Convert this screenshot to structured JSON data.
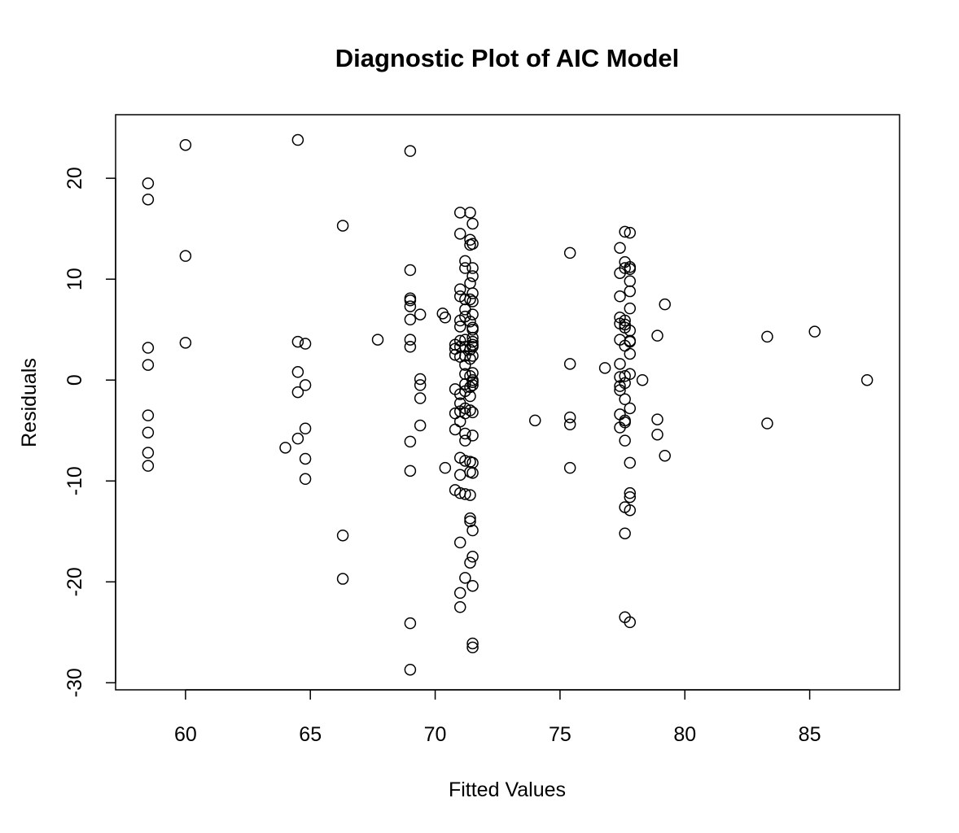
{
  "chart_data": {
    "type": "scatter",
    "title": "Diagnostic Plot of AIC Model",
    "xlabel": "Fitted Values",
    "ylabel": "Residuals",
    "xlim": [
      57.2,
      88.6
    ],
    "ylim": [
      -30.7,
      26.3
    ],
    "xticks": [
      60,
      65,
      70,
      75,
      80,
      85
    ],
    "yticks": [
      -30,
      -20,
      -10,
      0,
      10,
      20
    ],
    "xtick_labels": [
      "60",
      "65",
      "70",
      "75",
      "80",
      "85"
    ],
    "ytick_labels": [
      "-30",
      "-20",
      "-10",
      "0",
      "10",
      "20"
    ],
    "grid": false,
    "legend": "none",
    "marker": "open-circle",
    "points": [
      [
        58.5,
        19.5
      ],
      [
        58.5,
        17.9
      ],
      [
        58.5,
        3.2
      ],
      [
        58.5,
        1.5
      ],
      [
        58.5,
        -3.5
      ],
      [
        58.5,
        -5.2
      ],
      [
        58.5,
        -7.2
      ],
      [
        58.5,
        -8.5
      ],
      [
        60.0,
        23.3
      ],
      [
        60.0,
        12.3
      ],
      [
        60.0,
        3.7
      ],
      [
        64.0,
        -6.7
      ],
      [
        64.5,
        23.8
      ],
      [
        64.5,
        3.8
      ],
      [
        64.5,
        0.8
      ],
      [
        64.5,
        -1.2
      ],
      [
        64.5,
        -5.8
      ],
      [
        64.8,
        3.6
      ],
      [
        64.8,
        -0.5
      ],
      [
        64.8,
        -4.8
      ],
      [
        64.8,
        -7.8
      ],
      [
        64.8,
        -9.8
      ],
      [
        66.3,
        15.3
      ],
      [
        66.3,
        -15.4
      ],
      [
        66.3,
        -19.7
      ],
      [
        67.7,
        4.0
      ],
      [
        69.0,
        22.7
      ],
      [
        69.0,
        10.9
      ],
      [
        69.0,
        8.1
      ],
      [
        69.0,
        7.9
      ],
      [
        69.0,
        7.3
      ],
      [
        69.0,
        6.0
      ],
      [
        69.0,
        4.0
      ],
      [
        69.0,
        3.3
      ],
      [
        69.0,
        -6.1
      ],
      [
        69.0,
        -9.0
      ],
      [
        69.0,
        -24.1
      ],
      [
        69.0,
        -28.7
      ],
      [
        69.4,
        6.5
      ],
      [
        69.4,
        0.1
      ],
      [
        69.4,
        -0.5
      ],
      [
        69.4,
        -1.8
      ],
      [
        69.4,
        -4.5
      ],
      [
        70.3,
        6.6
      ],
      [
        70.4,
        6.2
      ],
      [
        70.4,
        -8.7
      ],
      [
        70.8,
        3.5
      ],
      [
        70.8,
        3.1
      ],
      [
        70.8,
        2.5
      ],
      [
        70.8,
        -0.9
      ],
      [
        70.8,
        -3.3
      ],
      [
        70.8,
        -4.9
      ],
      [
        70.8,
        -10.9
      ],
      [
        71.0,
        16.6
      ],
      [
        71.0,
        14.5
      ],
      [
        71.0,
        9.0
      ],
      [
        71.0,
        8.3
      ],
      [
        71.0,
        5.9
      ],
      [
        71.0,
        5.3
      ],
      [
        71.0,
        3.9
      ],
      [
        71.0,
        3.3
      ],
      [
        71.0,
        2.3
      ],
      [
        71.0,
        -1.4
      ],
      [
        71.0,
        -2.3
      ],
      [
        71.0,
        -3.1
      ],
      [
        71.0,
        -4.1
      ],
      [
        71.0,
        -7.7
      ],
      [
        71.0,
        -9.4
      ],
      [
        71.0,
        -11.2
      ],
      [
        71.0,
        -16.1
      ],
      [
        71.0,
        -21.1
      ],
      [
        71.0,
        -22.5
      ],
      [
        71.2,
        11.8
      ],
      [
        71.2,
        11.1
      ],
      [
        71.2,
        8.0
      ],
      [
        71.2,
        7.0
      ],
      [
        71.2,
        6.3
      ],
      [
        71.2,
        4.0
      ],
      [
        71.2,
        3.3
      ],
      [
        71.2,
        2.4
      ],
      [
        71.2,
        1.5
      ],
      [
        71.2,
        0.6
      ],
      [
        71.2,
        -0.4
      ],
      [
        71.2,
        -1.1
      ],
      [
        71.2,
        -2.8
      ],
      [
        71.2,
        -3.3
      ],
      [
        71.2,
        -5.3
      ],
      [
        71.2,
        -6.0
      ],
      [
        71.2,
        -8.0
      ],
      [
        71.2,
        -11.3
      ],
      [
        71.2,
        -19.6
      ],
      [
        71.4,
        16.6
      ],
      [
        71.4,
        13.9
      ],
      [
        71.4,
        13.4
      ],
      [
        71.4,
        9.6
      ],
      [
        71.4,
        8.0
      ],
      [
        71.4,
        5.8
      ],
      [
        71.4,
        3.0
      ],
      [
        71.4,
        2.1
      ],
      [
        71.4,
        0.4
      ],
      [
        71.4,
        -0.7
      ],
      [
        71.4,
        -1.6
      ],
      [
        71.4,
        -3.0
      ],
      [
        71.4,
        -8.1
      ],
      [
        71.4,
        -9.1
      ],
      [
        71.4,
        -11.4
      ],
      [
        71.4,
        -13.7
      ],
      [
        71.4,
        -14.0
      ],
      [
        71.4,
        -18.1
      ],
      [
        71.5,
        15.5
      ],
      [
        71.5,
        13.5
      ],
      [
        71.5,
        11.1
      ],
      [
        71.5,
        10.3
      ],
      [
        71.5,
        8.6
      ],
      [
        71.5,
        7.8
      ],
      [
        71.5,
        6.5
      ],
      [
        71.5,
        5.2
      ],
      [
        71.5,
        5.0
      ],
      [
        71.5,
        4.2
      ],
      [
        71.5,
        3.8
      ],
      [
        71.5,
        3.5
      ],
      [
        71.5,
        3.3
      ],
      [
        71.5,
        2.4
      ],
      [
        71.5,
        0.7
      ],
      [
        71.5,
        0.0
      ],
      [
        71.5,
        -0.2
      ],
      [
        71.5,
        -0.5
      ],
      [
        71.5,
        -3.2
      ],
      [
        71.5,
        -5.5
      ],
      [
        71.5,
        -8.2
      ],
      [
        71.5,
        -9.2
      ],
      [
        71.5,
        -14.9
      ],
      [
        71.5,
        -17.5
      ],
      [
        71.5,
        -20.4
      ],
      [
        71.5,
        -26.1
      ],
      [
        71.5,
        -26.5
      ],
      [
        74.0,
        -4.0
      ],
      [
        75.4,
        12.6
      ],
      [
        75.4,
        1.6
      ],
      [
        75.4,
        -3.7
      ],
      [
        75.4,
        -4.4
      ],
      [
        75.4,
        -8.7
      ],
      [
        76.8,
        1.2
      ],
      [
        77.4,
        13.1
      ],
      [
        77.4,
        10.6
      ],
      [
        77.4,
        8.3
      ],
      [
        77.4,
        6.2
      ],
      [
        77.4,
        5.6
      ],
      [
        77.4,
        4.0
      ],
      [
        77.4,
        1.6
      ],
      [
        77.4,
        0.3
      ],
      [
        77.4,
        -0.6
      ],
      [
        77.4,
        -1.0
      ],
      [
        77.4,
        -3.4
      ],
      [
        77.4,
        -4.7
      ],
      [
        77.6,
        14.7
      ],
      [
        77.6,
        11.7
      ],
      [
        77.6,
        11.1
      ],
      [
        77.6,
        5.9
      ],
      [
        77.6,
        5.5
      ],
      [
        77.6,
        5.2
      ],
      [
        77.6,
        3.4
      ],
      [
        77.6,
        0.4
      ],
      [
        77.6,
        -0.3
      ],
      [
        77.6,
        -1.9
      ],
      [
        77.6,
        -4.0
      ],
      [
        77.6,
        -4.2
      ],
      [
        77.6,
        -6.0
      ],
      [
        77.6,
        -12.6
      ],
      [
        77.6,
        -15.2
      ],
      [
        77.6,
        -23.5
      ],
      [
        77.8,
        14.6
      ],
      [
        77.8,
        11.2
      ],
      [
        77.8,
        11.0
      ],
      [
        77.8,
        9.8
      ],
      [
        77.8,
        8.8
      ],
      [
        77.8,
        7.1
      ],
      [
        77.8,
        4.9
      ],
      [
        77.8,
        3.9
      ],
      [
        77.8,
        3.8
      ],
      [
        77.8,
        2.6
      ],
      [
        77.8,
        0.6
      ],
      [
        77.8,
        -2.8
      ],
      [
        77.8,
        -8.2
      ],
      [
        77.8,
        -11.2
      ],
      [
        77.8,
        -11.6
      ],
      [
        77.8,
        -12.9
      ],
      [
        77.8,
        -24.0
      ],
      [
        78.3,
        0.0
      ],
      [
        78.9,
        4.4
      ],
      [
        78.9,
        -3.9
      ],
      [
        78.9,
        -5.4
      ],
      [
        79.2,
        7.5
      ],
      [
        79.2,
        -7.5
      ],
      [
        83.3,
        4.3
      ],
      [
        83.3,
        -4.3
      ],
      [
        85.2,
        4.8
      ],
      [
        87.3,
        0.0
      ]
    ]
  }
}
